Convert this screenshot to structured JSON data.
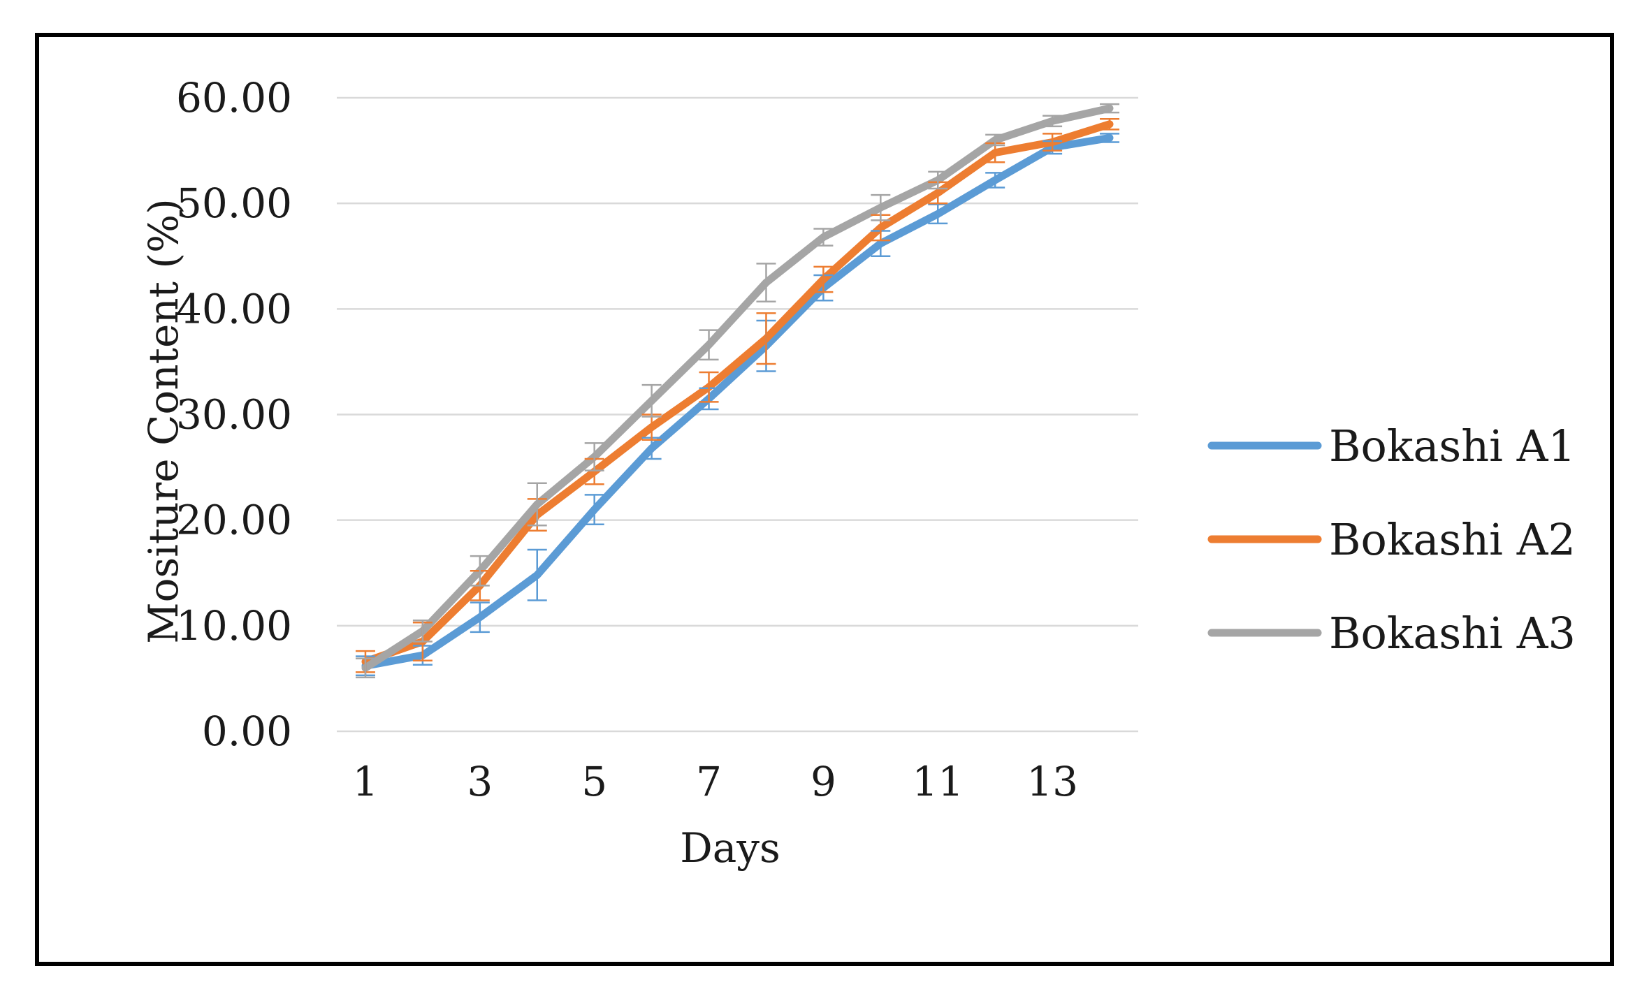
{
  "chart_data": {
    "type": "line",
    "title": "",
    "xlabel": "Days",
    "ylabel": "Mositure Content (%)",
    "x": [
      1,
      2,
      3,
      4,
      5,
      6,
      7,
      8,
      9,
      10,
      11,
      12,
      13,
      14
    ],
    "xticks": [
      "1",
      "3",
      "5",
      "7",
      "9",
      "11",
      "13"
    ],
    "yticks": [
      "0.00",
      "10.00",
      "20.00",
      "30.00",
      "40.00",
      "50.00",
      "60.00"
    ],
    "xlim": [
      0.5,
      14.5
    ],
    "ylim": [
      0,
      60
    ],
    "grid": "horizontal",
    "error_bars": true,
    "legend": "right",
    "series": [
      {
        "name": "Bokashi A1",
        "color": "#5b9bd5",
        "values": [
          6.2,
          7.2,
          10.8,
          14.8,
          21.0,
          26.8,
          31.5,
          36.5,
          42.0,
          46.2,
          49.0,
          52.2,
          55.3,
          56.2
        ],
        "errors": [
          0.9,
          0.9,
          1.4,
          2.4,
          1.4,
          1.0,
          1.0,
          2.4,
          1.2,
          1.2,
          0.9,
          0.7,
          0.6,
          0.4
        ]
      },
      {
        "name": "Bokashi A2",
        "color": "#ed7d31",
        "values": [
          6.6,
          8.5,
          13.8,
          20.5,
          24.6,
          28.8,
          32.6,
          37.2,
          42.8,
          47.7,
          51.0,
          54.8,
          55.8,
          57.5
        ],
        "errors": [
          1.0,
          1.8,
          1.4,
          1.5,
          1.2,
          1.2,
          1.4,
          2.4,
          1.2,
          1.2,
          1.0,
          0.9,
          0.8,
          0.5
        ]
      },
      {
        "name": "Bokashi A3",
        "color": "#a5a5a5",
        "values": [
          6.0,
          9.5,
          15.2,
          21.5,
          26.0,
          31.3,
          36.6,
          42.5,
          46.8,
          49.6,
          52.2,
          56.0,
          57.8,
          59.0
        ],
        "errors": [
          0.9,
          1.0,
          1.4,
          2.0,
          1.3,
          1.5,
          1.4,
          1.8,
          0.8,
          1.2,
          0.8,
          0.5,
          0.5,
          0.4
        ]
      }
    ]
  }
}
